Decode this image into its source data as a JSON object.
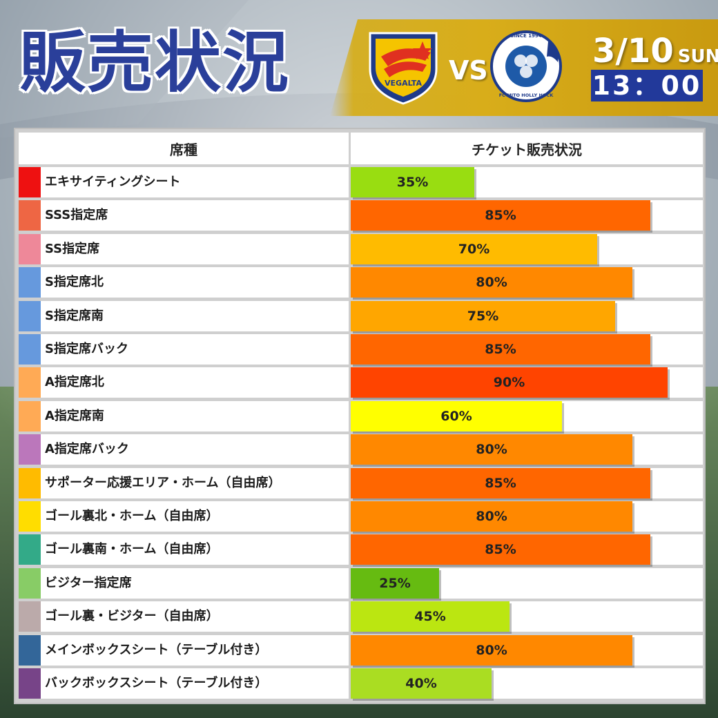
{
  "header": {
    "title": "販売状況",
    "vs": "VS",
    "date": "3/10",
    "day_of_week": "SUN",
    "time": "13：00",
    "home_team_logo_text": "VEGALTA",
    "away_team_logo_text": "FC MITO HOLLY HOCK"
  },
  "table": {
    "col_seat": "席種",
    "col_status": "チケット販売状況"
  },
  "chart_data": {
    "type": "bar",
    "orientation": "horizontal",
    "xlim": [
      0,
      100
    ],
    "categories": [
      "エキサイティングシート",
      "SSS指定席",
      "SS指定席",
      "S指定席北",
      "S指定席南",
      "S指定席バック",
      "A指定席北",
      "A指定席南",
      "A指定席バック",
      "サポーター応援エリア・ホーム（自由席）",
      "ゴール裏北・ホーム（自由席）",
      "ゴール裏南・ホーム（自由席）",
      "ビジター指定席",
      "ゴール裏・ビジター（自由席）",
      "メインボックスシート（テーブル付き）",
      "バックボックスシート（テーブル付き）"
    ],
    "values": [
      35,
      85,
      70,
      80,
      75,
      85,
      90,
      60,
      80,
      85,
      80,
      85,
      25,
      45,
      80,
      40
    ],
    "value_labels": [
      "35%",
      "85%",
      "70%",
      "80%",
      "75%",
      "85%",
      "90%",
      "60%",
      "80%",
      "85%",
      "80%",
      "85%",
      "25%",
      "45%",
      "80%",
      "40%"
    ],
    "bar_colors": [
      "#99dd11",
      "#ff6600",
      "#ffbb00",
      "#ff8800",
      "#ffa600",
      "#ff6600",
      "#ff4400",
      "#ffff00",
      "#ff8800",
      "#ff6600",
      "#ff8800",
      "#ff6600",
      "#66bb11",
      "#bbe611",
      "#ff8800",
      "#aadd22"
    ],
    "swatch_colors": [
      "#ee1111",
      "#ee6644",
      "#ee8899",
      "#6699dd",
      "#6699dd",
      "#6699dd",
      "#ffaa55",
      "#ffaa55",
      "#bb77bb",
      "#ffbb00",
      "#ffdd00",
      "#33aa88",
      "#88cc66",
      "#bbaaaa",
      "#336699",
      "#774488"
    ]
  }
}
